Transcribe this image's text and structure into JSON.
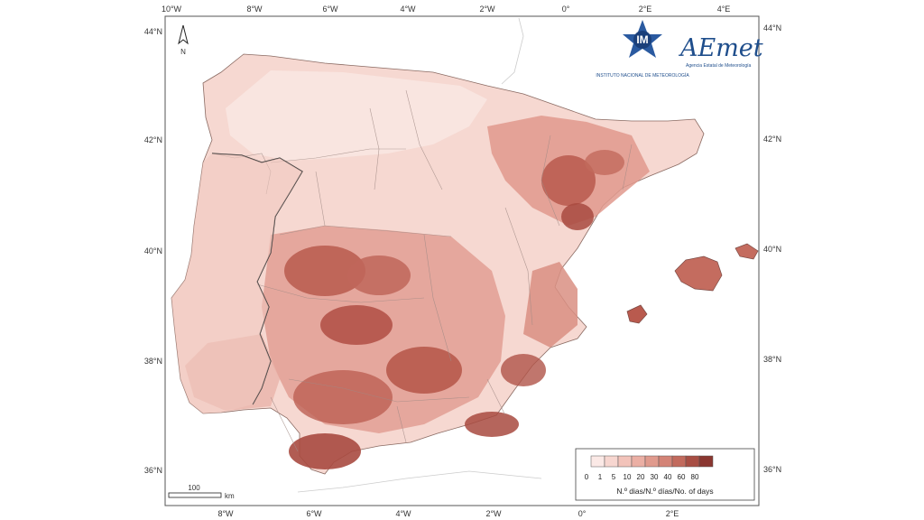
{
  "map": {
    "lon_ticks_top": [
      "10°W",
      "8°W",
      "6°W",
      "4°W",
      "2°W",
      "0°",
      "2°E",
      "4°E"
    ],
    "lon_ticks_bottom": [
      "8°W",
      "6°W",
      "4°W",
      "2°W",
      "0°",
      "2°E"
    ],
    "lat_ticks_left": [
      "44°N",
      "42°N",
      "40°N",
      "38°N",
      "36°N"
    ],
    "lat_ticks_right": [
      "44°N",
      "42°N",
      "40°N",
      "38°N",
      "36°N"
    ],
    "north_label": "N",
    "scale_value": "100",
    "scale_unit": "km"
  },
  "logos": {
    "im_text": "IM",
    "im_sub": "INSTITUTO NACIONAL DE METEOROLOGÍA",
    "aemet_text": "AEmet",
    "aemet_sub": "Agencia Estatal de Meteorología"
  },
  "legend": {
    "classes": [
      "0",
      "1",
      "5",
      "10",
      "20",
      "30",
      "40",
      "60",
      "80"
    ],
    "colors": [
      "#fbe9e6",
      "#f7d6d0",
      "#f2c3ba",
      "#ebafa4",
      "#e09a8d",
      "#d38376",
      "#c26a5d",
      "#a84e44",
      "#8a3630"
    ],
    "title": "N.º dias/N.º días/No. of days"
  }
}
